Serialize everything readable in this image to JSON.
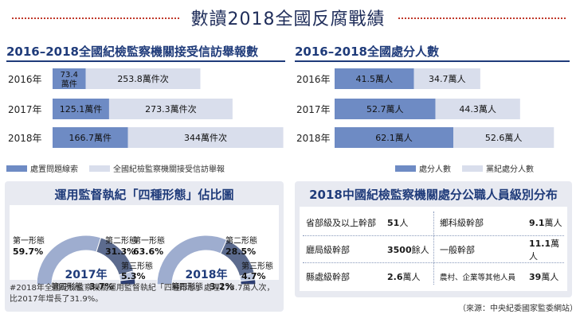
{
  "title": "數讀2018全國反腐戰績",
  "left_chart": {
    "title": "2016–2018全國紀檢監察機關接受信訪舉報數",
    "legend": [
      "處置問題線索",
      "全國紀檢監察機關接受信訪舉報"
    ],
    "colors": {
      "dark": "#6e8bc4",
      "light": "#d9deec"
    }
  },
  "right_chart": {
    "title": "2016–2018全國處分人數",
    "legend": [
      "處分人數",
      "黨紀處分人數"
    ],
    "colors": {
      "dark": "#6e8bc4",
      "light": "#d9deec"
    }
  },
  "gauges": {
    "title": "運用監督執紀「四種形態」佔比圖",
    "note": "#2018年全國紀檢監察機關運用監督執紀「四種形態」處理173.7萬人次，比2017年增長了31.9%。",
    "colors": {
      "f1": "#9eadcf",
      "f2": "#5c6b8e",
      "f3": "#b9c4dd",
      "f4": "#2e3f73"
    }
  },
  "officials": {
    "title": "2018中國紀檢監察機關處分公職人員級別分布",
    "rows": [
      {
        "l_label": "省部級及以上幹部",
        "l_num": "51",
        "l_unit": "人",
        "r_label": "鄉科級幹部",
        "r_num": "9.1",
        "r_unit": "萬人"
      },
      {
        "l_label": "廳局級幹部",
        "l_num": "3500",
        "l_unit": "餘人",
        "r_label": "一般幹部",
        "r_num": "11.1",
        "r_unit": "萬人"
      },
      {
        "l_label": "縣處級幹部",
        "l_num": "2.6",
        "l_unit": "萬人",
        "r_label": "農村、企業等其他人員",
        "r_num": "39",
        "r_unit": "萬人"
      }
    ]
  },
  "source": "（來源：中央紀委國家監委網站）",
  "chart_data": [
    {
      "type": "bar",
      "orientation": "horizontal",
      "stacked": true,
      "title": "2016–2018全國紀檢監察機關接受信訪舉報數",
      "categories": [
        "2016年",
        "2017年",
        "2018年"
      ],
      "series": [
        {
          "name": "處置問題線索",
          "values": [
            73.4,
            125.1,
            166.7
          ],
          "labels": [
            "73.4萬件",
            "125.1萬件",
            "166.7萬件"
          ]
        },
        {
          "name": "全國紀檢監察機關接受信訪舉報",
          "values": [
            253.8,
            273.3,
            344
          ],
          "labels": [
            "253.8萬件次",
            "273.3萬件次",
            "344萬件次"
          ]
        }
      ],
      "legend_position": "bottom"
    },
    {
      "type": "bar",
      "orientation": "horizontal",
      "stacked": true,
      "title": "2016–2018全國處分人數",
      "categories": [
        "2016年",
        "2017年",
        "2018年"
      ],
      "series": [
        {
          "name": "處分人數",
          "values": [
            41.5,
            52.7,
            62.1
          ],
          "labels": [
            "41.5萬人",
            "52.7萬人",
            "62.1萬人"
          ]
        },
        {
          "name": "黨紀處分人數",
          "values": [
            34.7,
            44.3,
            52.6
          ],
          "labels": [
            "34.7萬人",
            "44.3萬人",
            "52.6萬人"
          ]
        }
      ],
      "legend_position": "bottom"
    },
    {
      "type": "pie",
      "style": "semicircle-gauge",
      "center_label": "2017年",
      "slices": [
        {
          "name": "第一形態",
          "value": 59.7,
          "label": "59.7%"
        },
        {
          "name": "第二形態",
          "value": 31.3,
          "label": "31.3%"
        },
        {
          "name": "第三形態",
          "value": 5.3,
          "label": "5.3%"
        },
        {
          "name": "第四形態",
          "value": 3.7,
          "label": "3.7%"
        }
      ]
    },
    {
      "type": "pie",
      "style": "semicircle-gauge",
      "center_label": "2018年",
      "slices": [
        {
          "name": "第一形態",
          "value": 63.6,
          "label": "63.6%"
        },
        {
          "name": "第二形態",
          "value": 28.5,
          "label": "28.5%"
        },
        {
          "name": "第三形態",
          "value": 4.7,
          "label": "4.7%"
        },
        {
          "name": "第四形態",
          "value": 3.2,
          "label": "3.2%"
        }
      ]
    }
  ]
}
